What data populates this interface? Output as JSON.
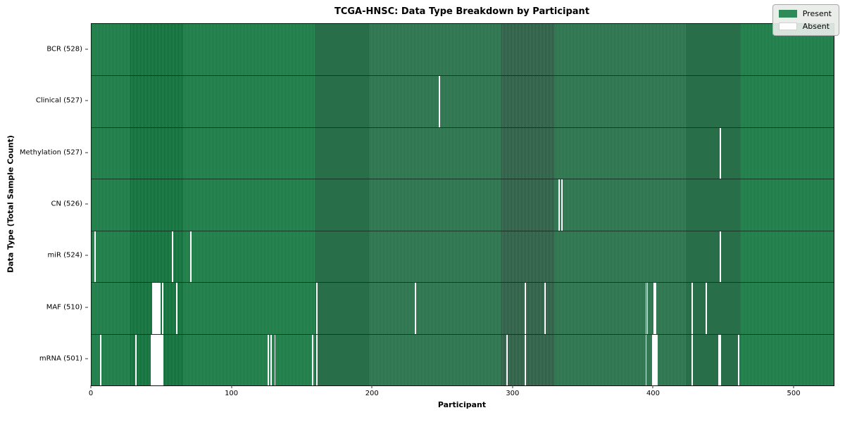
{
  "title": "TCGA-HNSC: Data Type Breakdown by Participant",
  "x_axis_label": "Participant",
  "y_axis_label": "Data Type (Total Sample Count)",
  "legend": {
    "present_label": "Present",
    "absent_label": "Absent"
  },
  "colors": {
    "present": "#2e8b57",
    "present_edge": "#22523a",
    "absent": "#ffffff",
    "legend_bg": "#e8ebe8",
    "legend_border": "#a8a8a8"
  },
  "chart_data": {
    "type": "heatmap",
    "title": "TCGA-HNSC: Data Type Breakdown by Participant",
    "xlabel": "Participant",
    "ylabel": "Data Type (Total Sample Count)",
    "x_range": [
      0,
      528
    ],
    "x_ticks": [
      0,
      100,
      200,
      300,
      400,
      500
    ],
    "grid": false,
    "legend_position": "upper right",
    "legend_entries": [
      {
        "label": "Present",
        "color": "#2e8b57"
      },
      {
        "label": "Absent",
        "color": "#ffffff"
      }
    ],
    "rows": [
      {
        "label": "BCR (528)",
        "data_type": "BCR",
        "total_samples": 528,
        "absent_participants": []
      },
      {
        "label": "Clinical (527)",
        "data_type": "Clinical",
        "total_samples": 527,
        "absent_participants": [
          247
        ]
      },
      {
        "label": "Methylation (527)",
        "data_type": "Methylation",
        "total_samples": 527,
        "absent_participants": [
          447
        ]
      },
      {
        "label": "CN (526)",
        "data_type": "CN",
        "total_samples": 526,
        "absent_participants": [
          332,
          334
        ]
      },
      {
        "label": "miR (524)",
        "data_type": "miR",
        "total_samples": 524,
        "absent_participants": [
          2,
          57,
          70,
          447
        ]
      },
      {
        "label": "MAF (510)",
        "data_type": "MAF",
        "total_samples": 510,
        "absent_participants": [
          43,
          44,
          45,
          46,
          47,
          48,
          50,
          60,
          160,
          230,
          308,
          322,
          394,
          395,
          400,
          401,
          427,
          437
        ]
      },
      {
        "label": "mRNA (501)",
        "data_type": "mRNA",
        "total_samples": 501,
        "absent_participants": [
          6,
          31,
          42,
          43,
          44,
          45,
          46,
          47,
          48,
          49,
          50,
          125,
          127,
          130,
          157,
          160,
          295,
          308,
          394,
          399,
          400,
          401,
          402,
          427,
          446,
          447,
          460
        ]
      }
    ]
  }
}
